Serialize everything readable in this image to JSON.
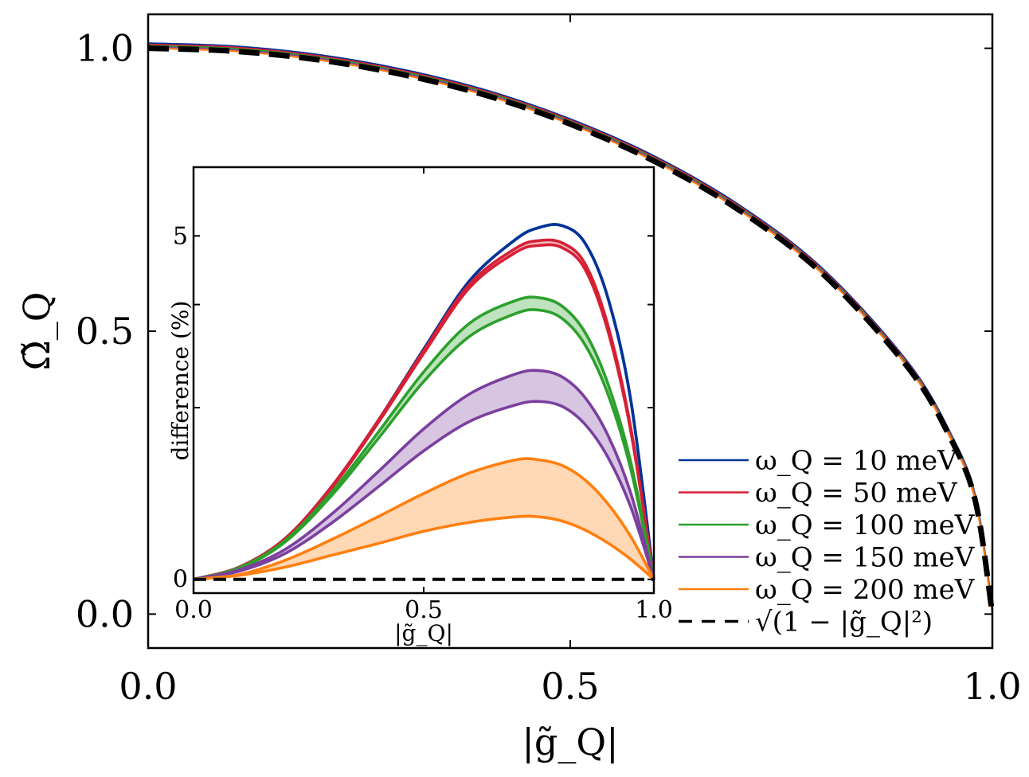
{
  "chart_data": [
    {
      "type": "line",
      "title": "",
      "xlabel": "|g̃_Q|",
      "ylabel": "Ω̃_Q",
      "xlim": [
        0.0,
        1.0
      ],
      "ylim": [
        -0.06,
        1.06
      ],
      "xticks": [
        0.0,
        0.5,
        1.0
      ],
      "xtick_labels": [
        "0.0",
        "0.5",
        "1.0"
      ],
      "yticks": [
        0.0,
        0.5,
        1.0
      ],
      "ytick_labels": [
        "0.0",
        "0.5",
        "1.0"
      ],
      "grid": false,
      "legend_position": "bottom-right",
      "x": [
        0.0,
        0.1,
        0.2,
        0.3,
        0.4,
        0.5,
        0.6,
        0.7,
        0.8,
        0.9,
        0.95,
        0.98,
        1.0
      ],
      "series": [
        {
          "name": "ω_Q = 10 meV",
          "color": "#003399",
          "values": [
            1.0,
            0.995,
            0.98,
            0.954,
            0.917,
            0.866,
            0.8,
            0.714,
            0.6,
            0.436,
            0.312,
            0.199,
            0.0
          ]
        },
        {
          "name": "ω_Q = 50 meV",
          "color": "#d62035",
          "values": [
            1.0,
            0.995,
            0.98,
            0.954,
            0.917,
            0.866,
            0.8,
            0.714,
            0.6,
            0.436,
            0.312,
            0.199,
            0.0
          ]
        },
        {
          "name": "ω_Q = 100 meV",
          "color": "#2ca02c",
          "values": [
            1.0,
            0.995,
            0.98,
            0.954,
            0.917,
            0.866,
            0.8,
            0.714,
            0.6,
            0.436,
            0.312,
            0.199,
            0.0
          ]
        },
        {
          "name": "ω_Q = 150 meV",
          "color": "#7b3f9e",
          "values": [
            1.0,
            0.995,
            0.98,
            0.954,
            0.917,
            0.866,
            0.8,
            0.714,
            0.6,
            0.436,
            0.312,
            0.199,
            0.0
          ]
        },
        {
          "name": "ω_Q = 200 meV",
          "color": "#ff7f0e",
          "values": [
            1.0,
            0.995,
            0.98,
            0.954,
            0.917,
            0.866,
            0.8,
            0.714,
            0.6,
            0.436,
            0.312,
            0.199,
            0.0
          ]
        },
        {
          "name": "√(1 − |g̃_Q|²)",
          "color": "#000000",
          "dashed": true,
          "values": [
            1.0,
            0.995,
            0.98,
            0.954,
            0.917,
            0.866,
            0.8,
            0.714,
            0.6,
            0.436,
            0.312,
            0.199,
            0.0
          ]
        }
      ],
      "legend": [
        {
          "label": "ω_Q = 10 meV",
          "color": "#003399",
          "style": "solid"
        },
        {
          "label": "ω_Q = 50 meV",
          "color": "#d62035",
          "style": "solid"
        },
        {
          "label": "ω_Q = 100 meV",
          "color": "#2ca02c",
          "style": "solid"
        },
        {
          "label": "ω_Q = 150 meV",
          "color": "#7b3f9e",
          "style": "solid"
        },
        {
          "label": "ω_Q = 200 meV",
          "color": "#ff7f0e",
          "style": "solid"
        },
        {
          "label": "√(1 − |g̃_Q|²)",
          "color": "#000000",
          "style": "dashed"
        }
      ]
    },
    {
      "type": "area",
      "title": "",
      "inset": true,
      "xlabel": "|g̃_Q|",
      "ylabel": "difference (%)",
      "xlim": [
        0.0,
        1.0
      ],
      "ylim": [
        -0.2,
        6.0
      ],
      "xticks": [
        0.0,
        0.5,
        1.0
      ],
      "xtick_labels": [
        "0.0",
        "0.5",
        "1.0"
      ],
      "yticks": [
        0,
        5
      ],
      "ytick_labels": [
        "0",
        "5"
      ],
      "grid": false,
      "x": [
        0.0,
        0.1,
        0.2,
        0.3,
        0.4,
        0.5,
        0.6,
        0.7,
        0.75,
        0.8,
        0.85,
        0.9,
        0.95,
        1.0
      ],
      "baseline": 0,
      "series": [
        {
          "name": "ω_Q = 10 meV",
          "color": "#003399",
          "upper": [
            0.0,
            0.18,
            0.6,
            1.35,
            2.3,
            3.35,
            4.35,
            4.95,
            5.12,
            5.15,
            4.9,
            4.1,
            2.6,
            0.0
          ],
          "lower": [
            0.0,
            0.18,
            0.6,
            1.35,
            2.3,
            3.35,
            4.35,
            4.95,
            5.12,
            5.15,
            4.9,
            4.1,
            2.6,
            0.0
          ]
        },
        {
          "name": "ω_Q = 50 meV",
          "color": "#d62035",
          "upper": [
            0.0,
            0.18,
            0.6,
            1.35,
            2.3,
            3.33,
            4.3,
            4.82,
            4.93,
            4.9,
            4.6,
            3.7,
            2.2,
            0.0
          ],
          "lower": [
            0.0,
            0.18,
            0.59,
            1.33,
            2.27,
            3.29,
            4.25,
            4.76,
            4.86,
            4.83,
            4.52,
            3.62,
            2.15,
            0.0
          ]
        },
        {
          "name": "ω_Q = 100 meV",
          "color": "#2ca02c",
          "upper": [
            0.0,
            0.17,
            0.57,
            1.27,
            2.13,
            3.02,
            3.73,
            4.06,
            4.1,
            3.98,
            3.6,
            2.85,
            1.7,
            0.0
          ],
          "lower": [
            0.0,
            0.16,
            0.55,
            1.22,
            2.04,
            2.88,
            3.54,
            3.87,
            3.92,
            3.8,
            3.42,
            2.7,
            1.6,
            0.0
          ]
        },
        {
          "name": "ω_Q = 150 meV",
          "color": "#7b3f9e",
          "upper": [
            0.0,
            0.14,
            0.44,
            0.95,
            1.56,
            2.19,
            2.7,
            2.99,
            3.04,
            2.95,
            2.65,
            2.1,
            1.25,
            0.0
          ],
          "lower": [
            0.0,
            0.12,
            0.38,
            0.82,
            1.34,
            1.87,
            2.3,
            2.54,
            2.59,
            2.52,
            2.26,
            1.78,
            1.05,
            0.0
          ]
        },
        {
          "name": "ω_Q = 200 meV",
          "color": "#ff7f0e",
          "upper": [
            0.0,
            0.07,
            0.28,
            0.58,
            0.91,
            1.25,
            1.55,
            1.74,
            1.74,
            1.66,
            1.45,
            1.1,
            0.62,
            0.0
          ],
          "lower": [
            0.0,
            0.06,
            0.18,
            0.35,
            0.52,
            0.7,
            0.83,
            0.91,
            0.91,
            0.85,
            0.72,
            0.53,
            0.29,
            0.0
          ]
        }
      ]
    }
  ]
}
